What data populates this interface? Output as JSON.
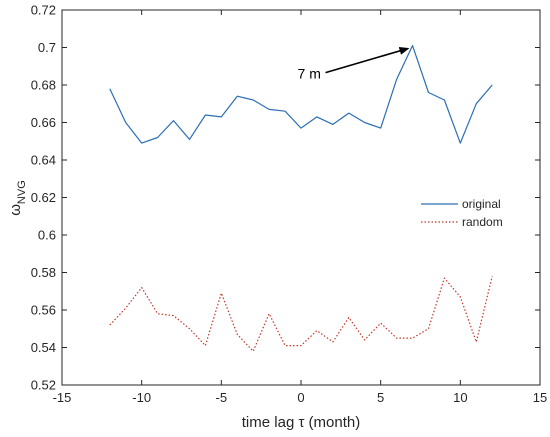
{
  "chart_data": {
    "type": "line",
    "xlabel": "time lag τ (month)",
    "ylabel_symbol": "ω",
    "ylabel_subscript": "NVG",
    "xlim": [
      -15,
      15
    ],
    "ylim": [
      0.52,
      0.72
    ],
    "x_ticks": [
      "-15",
      "-10",
      "-5",
      "0",
      "5",
      "10",
      "15"
    ],
    "y_ticks": [
      "0.52",
      "0.54",
      "0.56",
      "0.58",
      "0.6",
      "0.62",
      "0.64",
      "0.66",
      "0.68",
      "0.7",
      "0.72"
    ],
    "grid": false,
    "legend_position": "right",
    "series": [
      {
        "name": "original",
        "color": "#2a6fb5",
        "style": "solid",
        "x": [
          -12,
          -11,
          -10,
          -9,
          -8,
          -7,
          -6,
          -5,
          -4,
          -3,
          -2,
          -1,
          0,
          1,
          2,
          3,
          4,
          5,
          6,
          7,
          8,
          9,
          10,
          11,
          12
        ],
        "values": [
          0.678,
          0.66,
          0.649,
          0.652,
          0.661,
          0.651,
          0.664,
          0.663,
          0.674,
          0.672,
          0.667,
          0.666,
          0.657,
          0.663,
          0.659,
          0.665,
          0.66,
          0.657,
          0.683,
          0.701,
          0.676,
          0.672,
          0.649,
          0.67,
          0.68
        ]
      },
      {
        "name": "random",
        "color": "#c0392b",
        "style": "dotted",
        "x": [
          -12,
          -11,
          -10,
          -9,
          -8,
          -7,
          -6,
          -5,
          -4,
          -3,
          -2,
          -1,
          0,
          1,
          2,
          3,
          4,
          5,
          6,
          7,
          8,
          9,
          10,
          11,
          12
        ],
        "values": [
          0.552,
          0.561,
          0.572,
          0.558,
          0.557,
          0.55,
          0.541,
          0.569,
          0.547,
          0.538,
          0.558,
          0.541,
          0.541,
          0.549,
          0.543,
          0.556,
          0.544,
          0.553,
          0.545,
          0.545,
          0.55,
          0.577,
          0.567,
          0.543,
          0.578
        ]
      }
    ],
    "annotation": {
      "text": "7 m",
      "x": 7,
      "y": 0.701
    }
  }
}
